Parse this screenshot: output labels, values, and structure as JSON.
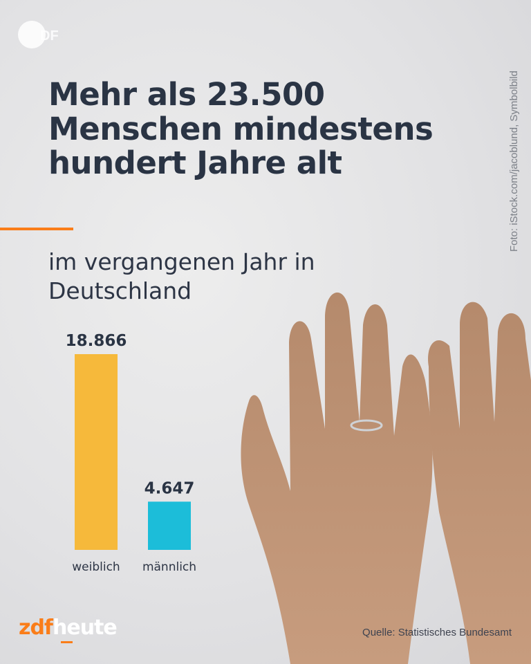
{
  "colors": {
    "accent": "#fa7d19",
    "female": "#f6b93b",
    "male": "#1cbdd9",
    "text_dark": "#2a3444"
  },
  "logo": {
    "icon": "zdf-logo-icon"
  },
  "title": "Mehr als 23.500 Menschen mindestens hundert Jahre alt",
  "subtitle": "im vergangenen Jahr in Deutschland",
  "photo_credit": "Foto: iStock.com/jacoblund, Symbolbild",
  "source": "Quelle: Statistisches Bundesamt",
  "brand": {
    "part_a": "zdf",
    "part_b": "heute"
  },
  "chart_data": {
    "type": "bar",
    "title": "",
    "xlabel": "",
    "ylabel": "",
    "categories": [
      "weiblich",
      "männlich"
    ],
    "values": [
      18866,
      4647
    ],
    "value_labels": [
      "18.866",
      "4.647"
    ],
    "colors": [
      "#f6b93b",
      "#1cbdd9"
    ],
    "ylim": [
      0,
      18866
    ],
    "grid": false,
    "legend": "none"
  }
}
